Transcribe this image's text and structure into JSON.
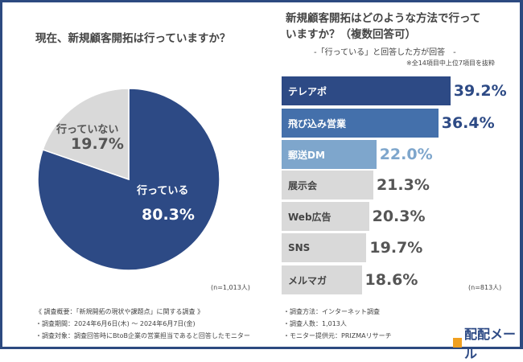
{
  "left": {
    "question": "現在、新規顧客開拓は行っていますか？",
    "n": "(n=1,013人)"
  },
  "right": {
    "question_line1": "新規顧客開拓はどのような方法で行って",
    "question_line2": "いますか？（複数回答可）",
    "subtitle": "-「行っている」と回答した方が回答　-",
    "note": "※全14項目中上位7項目を抜粋",
    "n": "(n=813人)"
  },
  "chart_data": [
    {
      "type": "pie",
      "slices": [
        {
          "label": "行っている",
          "value": 80.3,
          "display": "80.3%",
          "color": "#2d4a85"
        },
        {
          "label": "行っていない",
          "value": 19.7,
          "display": "19.7%",
          "color": "#d9d9d9"
        }
      ]
    },
    {
      "type": "bar",
      "orientation": "horizontal",
      "categories": [
        "テレアポ",
        "飛び込み営業",
        "郵送DM",
        "展示会",
        "Web広告",
        "SNS",
        "メルマガ"
      ],
      "values": [
        39.2,
        36.4,
        22.0,
        21.3,
        20.3,
        19.7,
        18.6
      ],
      "labels": [
        "39.2%",
        "36.4%",
        "22.0%",
        "21.3%",
        "20.3%",
        "19.7%",
        "18.6%"
      ],
      "colors": [
        "#2d4a85",
        "#4470ab",
        "#7ea6cc",
        "#d9d9d9",
        "#d9d9d9",
        "#d9d9d9",
        "#d9d9d9"
      ],
      "label_colors": [
        "#2d4a85",
        "#2d4a85",
        "#7ea6cc",
        "#555555",
        "#555555",
        "#555555",
        "#555555"
      ]
    }
  ],
  "footer": {
    "left": [
      "《 調査概要：「新規開拓の現状や課題点」に関する調査 》",
      "・調査期間：2024年6月6日(木) ～ 2024年6月7日(金)",
      "・調査対象：調査回答時にBtoB企業の営業担当であると回答したモニター"
    ],
    "right": [
      "・調査方法：インターネット調査",
      "・調査人数：1,013人",
      "・モニター提供元：PRIZMAリサーチ"
    ],
    "logo": "配配メール"
  }
}
